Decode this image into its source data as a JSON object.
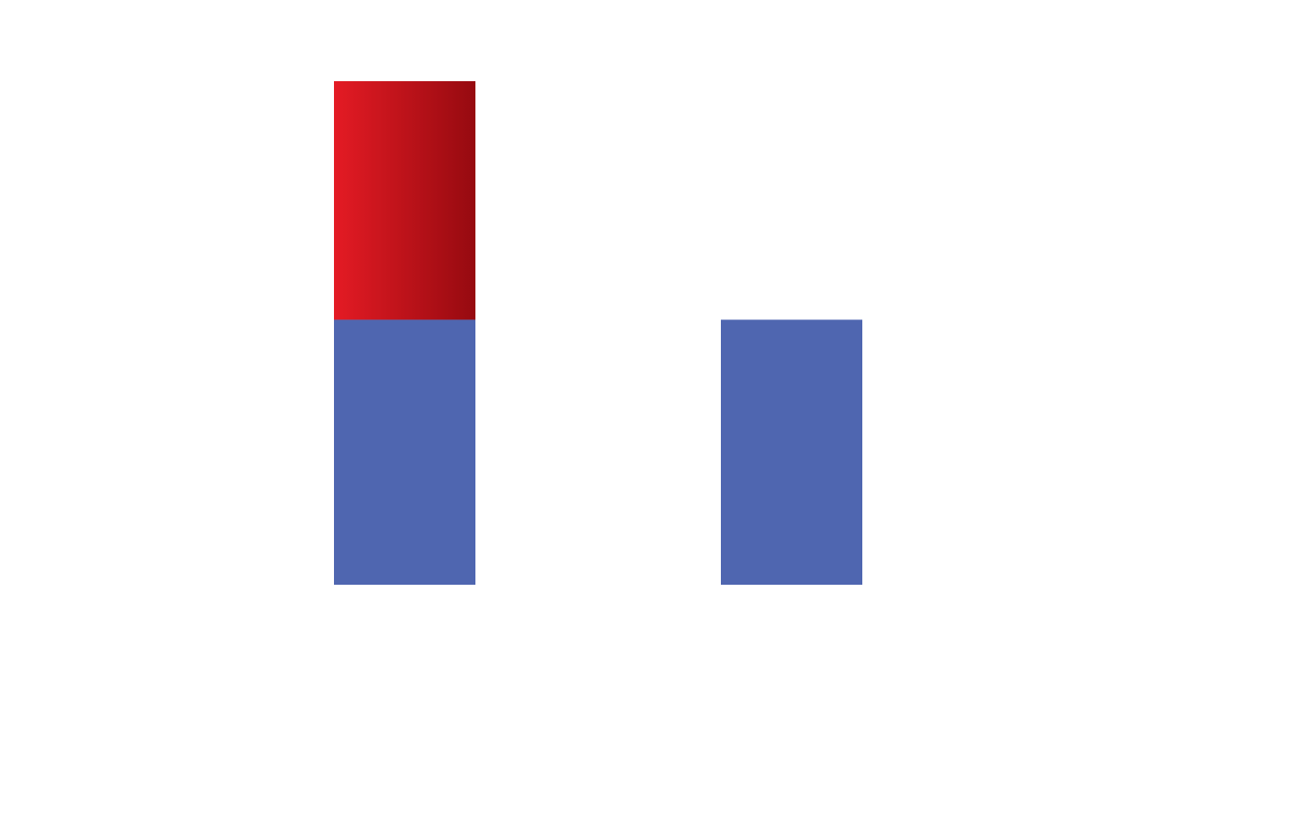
{
  "chart_data": {
    "type": "bar",
    "stacked": true,
    "categories": [
      "",
      ""
    ],
    "series": [
      {
        "values": [
          1.0,
          1.0
        ],
        "color": "#4f66b0"
      },
      {
        "values": [
          0.9,
          0
        ],
        "color": "#e41b24",
        "gradient_end_color": "#960a10"
      }
    ],
    "ylim": [
      0,
      1.9
    ],
    "grid": false,
    "legend": "none",
    "title": "",
    "xlabel": "",
    "ylabel": ""
  }
}
